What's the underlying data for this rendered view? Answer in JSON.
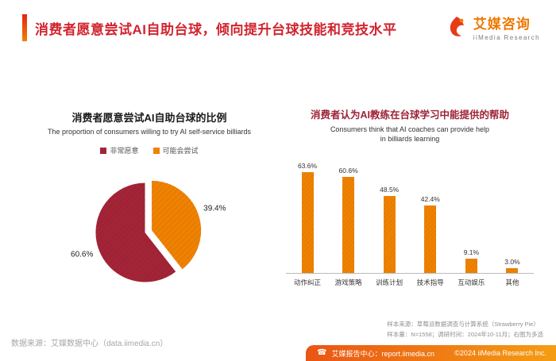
{
  "header": {
    "title": "消费者愿意尝试AI自助台球，倾向提升台球技能和竞技水平",
    "logo": {
      "brand": "艾媒咨询",
      "sub": "iiMedia Research"
    }
  },
  "colors": {
    "accent_red": "#d2232e",
    "brand_orange": "#f08300",
    "pie_dark_red": "#a32437",
    "pie_orange": "#ef8200"
  },
  "chart_data": [
    {
      "type": "pie",
      "title": "消费者愿意尝试AI自助台球的比例",
      "subtitle": "The proportion of consumers willing to try AI self-service billiards",
      "legend": [
        {
          "label": "非常愿意",
          "color": "#a32437"
        },
        {
          "label": "可能会尝试",
          "color": "#ef8200"
        }
      ],
      "slices": [
        {
          "label": "可能会尝试",
          "value": 39.4,
          "color": "#ef8200",
          "exploded": true
        },
        {
          "label": "非常愿意",
          "value": 60.6,
          "color": "#a32437",
          "exploded": false
        }
      ]
    },
    {
      "type": "bar",
      "title": "消费者认为AI教练在台球学习中能提供的帮助",
      "subtitle_line1": "Consumers think that AI coaches can provide help",
      "subtitle_line2": "in billiards learning",
      "categories": [
        "动作纠正",
        "游戏策略",
        "训练计划",
        "技术指导",
        "互动娱乐",
        "其他"
      ],
      "values": [
        63.6,
        60.6,
        48.5,
        42.4,
        9.1,
        3.0
      ],
      "bar_color": "#ef8200",
      "ylim": [
        0,
        70
      ]
    }
  ],
  "footnotes": {
    "left": "数据来源：艾媒数据中心（data.iimedia.cn）",
    "right_line1": "样本来源：草莓派数据调查与计算系统（Strawberry Pie）",
    "right_line2": "样本量：N=1558；调研时间：2024年10-11月；右图为多选"
  },
  "footer": {
    "left": "艾媒报告中心：report.iimedia.cn",
    "right": "©2024 iiMedia Research Inc."
  }
}
